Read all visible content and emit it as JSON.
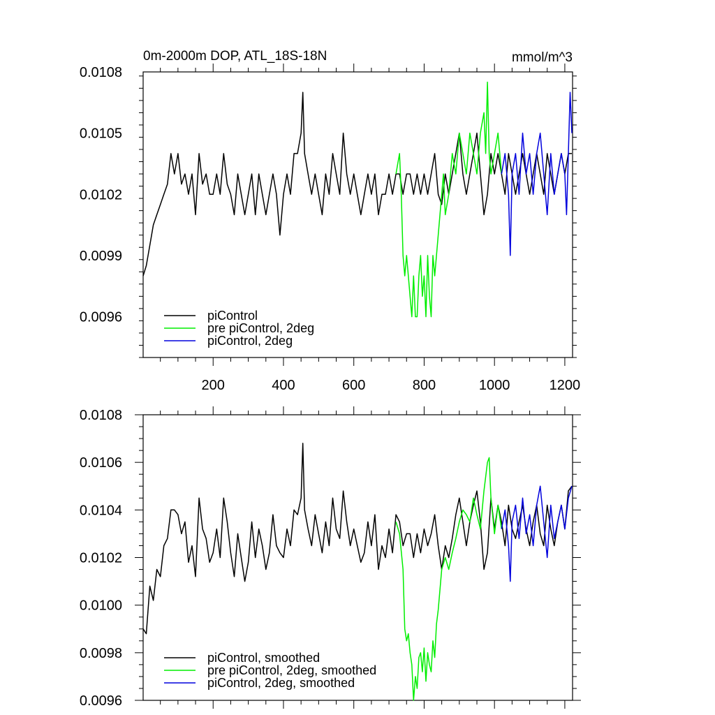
{
  "chart_data": [
    {
      "type": "line",
      "title": "0m-2000m DOP, ATL_18S-18N",
      "units": "mmol/m^3",
      "xlabel": "",
      "ylabel": "",
      "xlim": [
        1,
        1222
      ],
      "ylim": [
        0.0094,
        0.0108
      ],
      "x_ticks": [
        200,
        400,
        600,
        800,
        1000,
        1200
      ],
      "x_tick_labels": [
        "200",
        "400",
        "600",
        "800",
        "1000",
        "1200"
      ],
      "y_ticks": [
        0.0096,
        0.0099,
        0.0102,
        0.0105,
        0.0108
      ],
      "y_tick_labels": [
        "0.0096",
        "0.0099",
        "0.0102",
        "0.0105",
        "0.0108"
      ],
      "legend_position": "bottom-left",
      "series": [
        {
          "name": "piControl",
          "color": "#000000",
          "x": [
            1,
            10,
            20,
            30,
            40,
            50,
            60,
            70,
            80,
            90,
            100,
            110,
            120,
            130,
            140,
            150,
            160,
            170,
            180,
            190,
            200,
            210,
            220,
            230,
            240,
            250,
            260,
            270,
            280,
            290,
            300,
            310,
            320,
            330,
            340,
            350,
            360,
            370,
            380,
            390,
            400,
            410,
            420,
            430,
            440,
            450,
            455,
            460,
            470,
            480,
            490,
            500,
            510,
            520,
            530,
            540,
            550,
            560,
            570,
            580,
            590,
            600,
            610,
            620,
            630,
            640,
            650,
            660,
            670,
            680,
            690,
            700,
            710,
            720,
            730,
            740,
            750,
            760,
            770,
            780,
            790,
            800,
            810,
            820,
            830,
            840,
            850,
            860,
            870,
            880,
            890,
            900,
            910,
            920,
            930,
            940,
            950,
            960,
            970,
            980,
            990,
            1000,
            1010,
            1020,
            1030,
            1040,
            1050,
            1060,
            1070,
            1080,
            1090,
            1100,
            1110,
            1120,
            1130,
            1140,
            1150,
            1160,
            1170,
            1180,
            1190,
            1200,
            1210,
            1220
          ],
          "values": [
            0.0098,
            0.00985,
            0.00995,
            0.01005,
            0.0101,
            0.01015,
            0.0102,
            0.01025,
            0.0104,
            0.0103,
            0.0104,
            0.01025,
            0.0103,
            0.0102,
            0.0103,
            0.0101,
            0.0104,
            0.01025,
            0.0103,
            0.0102,
            0.0102,
            0.0103,
            0.0102,
            0.0104,
            0.01025,
            0.0102,
            0.0101,
            0.0103,
            0.0102,
            0.0101,
            0.0102,
            0.0103,
            0.0101,
            0.0103,
            0.0102,
            0.0101,
            0.0102,
            0.0103,
            0.0102,
            0.01,
            0.0102,
            0.0103,
            0.0102,
            0.0104,
            0.0104,
            0.0105,
            0.0107,
            0.0104,
            0.0103,
            0.0102,
            0.0103,
            0.0102,
            0.0101,
            0.0103,
            0.0102,
            0.0104,
            0.0103,
            0.0102,
            0.0105,
            0.0103,
            0.0102,
            0.0103,
            0.0102,
            0.0101,
            0.0102,
            0.0103,
            0.0102,
            0.0103,
            0.0101,
            0.0102,
            0.0102,
            0.0103,
            0.0102,
            0.0103,
            0.0103,
            0.0102,
            0.0103,
            0.0103,
            0.0102,
            0.0103,
            0.0102,
            0.0103,
            0.0102,
            0.0103,
            0.0104,
            0.0102,
            0.01015,
            0.0103,
            0.0102,
            0.0103,
            0.0104,
            0.0105,
            0.0103,
            0.0102,
            0.0103,
            0.0104,
            0.0105,
            0.0103,
            0.0101,
            0.0102,
            0.0104,
            0.0103,
            0.0104,
            0.0103,
            0.0102,
            0.0104,
            0.0103,
            0.0102,
            0.0103,
            0.0104,
            0.0103,
            0.0102,
            0.0103,
            0.0104,
            0.0103,
            0.0102,
            0.0104,
            0.0103,
            0.0102,
            0.0103,
            0.0104,
            0.0103,
            0.0104,
            0.0104
          ]
        },
        {
          "name": "pre piControl, 2deg",
          "color": "#00ee00",
          "x": [
            720,
            730,
            735,
            740,
            745,
            750,
            755,
            760,
            765,
            770,
            775,
            780,
            785,
            790,
            795,
            800,
            805,
            810,
            815,
            820,
            825,
            830,
            835,
            840,
            845,
            850,
            855,
            860,
            870,
            880,
            890,
            900,
            910,
            920,
            930,
            940,
            950,
            960,
            970,
            975,
            980,
            985,
            990,
            1000,
            1010,
            1020
          ],
          "values": [
            0.0103,
            0.0104,
            0.0102,
            0.0099,
            0.0098,
            0.0099,
            0.0098,
            0.0097,
            0.0096,
            0.0098,
            0.0096,
            0.0096,
            0.0098,
            0.0099,
            0.0097,
            0.0098,
            0.0096,
            0.0099,
            0.0097,
            0.0096,
            0.0099,
            0.0098,
            0.0099,
            0.01,
            0.0101,
            0.0102,
            0.0103,
            0.0101,
            0.0102,
            0.0104,
            0.0103,
            0.0105,
            0.0104,
            0.0103,
            0.0105,
            0.0104,
            0.0103,
            0.0105,
            0.0106,
            0.0104,
            0.01075,
            0.0104,
            0.0103,
            0.0104,
            0.0105,
            0.0103
          ]
        },
        {
          "name": "piControl, 2deg",
          "color": "#0000dd",
          "x": [
            1020,
            1030,
            1040,
            1045,
            1050,
            1060,
            1070,
            1080,
            1090,
            1100,
            1110,
            1120,
            1130,
            1140,
            1150,
            1160,
            1170,
            1180,
            1190,
            1200,
            1205,
            1210,
            1215,
            1220
          ],
          "values": [
            0.0103,
            0.0104,
            0.0102,
            0.0099,
            0.0103,
            0.0104,
            0.0102,
            0.0105,
            0.0103,
            0.0104,
            0.0102,
            0.0104,
            0.0105,
            0.0103,
            0.0101,
            0.0104,
            0.0102,
            0.0103,
            0.0104,
            0.0103,
            0.0101,
            0.0104,
            0.0107,
            0.0105
          ]
        }
      ],
      "legend": [
        "piControl",
        "pre piControl, 2deg",
        "piControl, 2deg"
      ]
    },
    {
      "type": "line",
      "title": "",
      "xlabel": "",
      "ylabel": "",
      "xlim": [
        1,
        1222
      ],
      "ylim": [
        0.0096,
        0.0108
      ],
      "x_ticks": [
        200,
        400,
        600,
        800,
        1000,
        1200
      ],
      "x_tick_labels": [],
      "y_ticks": [
        0.0096,
        0.0098,
        0.01,
        0.0102,
        0.0104,
        0.0106,
        0.0108
      ],
      "y_tick_labels": [
        "0.0096",
        "0.0098",
        "0.0100",
        "0.0102",
        "0.0104",
        "0.0106",
        "0.0108"
      ],
      "legend_position": "bottom-left",
      "series": [
        {
          "name": "piControl, smoothed",
          "color": "#000000",
          "x": [
            1,
            10,
            20,
            30,
            40,
            50,
            60,
            70,
            80,
            90,
            100,
            110,
            120,
            130,
            140,
            150,
            160,
            170,
            180,
            190,
            200,
            210,
            220,
            230,
            240,
            250,
            260,
            270,
            280,
            290,
            300,
            310,
            320,
            330,
            340,
            350,
            360,
            370,
            380,
            390,
            400,
            410,
            420,
            430,
            440,
            450,
            455,
            460,
            470,
            480,
            490,
            500,
            510,
            520,
            530,
            540,
            550,
            560,
            570,
            580,
            590,
            600,
            610,
            620,
            630,
            640,
            650,
            660,
            670,
            680,
            690,
            700,
            710,
            720,
            730,
            740,
            750,
            760,
            770,
            780,
            790,
            800,
            810,
            820,
            830,
            840,
            850,
            860,
            870,
            880,
            890,
            900,
            910,
            920,
            930,
            940,
            950,
            960,
            970,
            980,
            990,
            1000,
            1010,
            1020,
            1030,
            1040,
            1050,
            1060,
            1070,
            1080,
            1090,
            1100,
            1110,
            1120,
            1130,
            1140,
            1150,
            1160,
            1170,
            1180,
            1190,
            1200,
            1210,
            1220
          ],
          "values": [
            0.0099,
            0.00988,
            0.01008,
            0.01002,
            0.01015,
            0.01012,
            0.01025,
            0.01028,
            0.0104,
            0.0104,
            0.01038,
            0.0103,
            0.01035,
            0.01018,
            0.01025,
            0.01012,
            0.01045,
            0.01032,
            0.01028,
            0.01018,
            0.01022,
            0.01032,
            0.0102,
            0.01045,
            0.01035,
            0.01022,
            0.01012,
            0.0103,
            0.0102,
            0.0101,
            0.01018,
            0.01035,
            0.0102,
            0.01032,
            0.01025,
            0.01015,
            0.01022,
            0.01038,
            0.01025,
            0.01022,
            0.0102,
            0.01032,
            0.01025,
            0.0104,
            0.01038,
            0.01045,
            0.01068,
            0.0104,
            0.01032,
            0.01025,
            0.01038,
            0.0103,
            0.01022,
            0.01035,
            0.01025,
            0.01045,
            0.01032,
            0.01028,
            0.01048,
            0.01035,
            0.01025,
            0.01032,
            0.01025,
            0.01018,
            0.01022,
            0.01035,
            0.01025,
            0.01038,
            0.01015,
            0.01025,
            0.0102,
            0.01032,
            0.01022,
            0.01038,
            0.01035,
            0.01025,
            0.0103,
            0.0103,
            0.0102,
            0.0103,
            0.01022,
            0.01032,
            0.01025,
            0.0103,
            0.01038,
            0.01025,
            0.01015,
            0.01025,
            0.0102,
            0.01028,
            0.01038,
            0.01045,
            0.01035,
            0.01025,
            0.01035,
            0.01042,
            0.01048,
            0.01035,
            0.01015,
            0.01022,
            0.01045,
            0.01032,
            0.01042,
            0.01035,
            0.01025,
            0.01042,
            0.01032,
            0.01028,
            0.01035,
            0.01042,
            0.01032,
            0.01025,
            0.01035,
            0.01042,
            0.0103,
            0.01025,
            0.01042,
            0.01032,
            0.01025,
            0.01035,
            0.01042,
            0.01032,
            0.01048,
            0.0105
          ]
        },
        {
          "name": "pre piControl, 2deg, smoothed",
          "color": "#00ee00",
          "x": [
            720,
            730,
            740,
            745,
            750,
            755,
            760,
            765,
            770,
            775,
            780,
            785,
            790,
            795,
            800,
            805,
            810,
            815,
            820,
            825,
            830,
            835,
            840,
            850,
            860,
            870,
            880,
            890,
            900,
            910,
            920,
            930,
            940,
            950,
            960,
            970,
            980,
            985,
            990,
            1000,
            1010,
            1020
          ],
          "values": [
            0.01035,
            0.0103,
            0.01015,
            0.0099,
            0.00985,
            0.00988,
            0.0098,
            0.00975,
            0.0096,
            0.0097,
            0.00965,
            0.00978,
            0.0098,
            0.00972,
            0.00982,
            0.00968,
            0.0098,
            0.00975,
            0.00972,
            0.00985,
            0.00978,
            0.00992,
            0.00998,
            0.01015,
            0.0102,
            0.01015,
            0.01022,
            0.01028,
            0.01035,
            0.0104,
            0.01038,
            0.01035,
            0.01045,
            0.01038,
            0.01032,
            0.01048,
            0.0106,
            0.01062,
            0.01045,
            0.0103,
            0.01042,
            0.01032
          ]
        },
        {
          "name": "piControl, 2deg, smoothed",
          "color": "#0000dd",
          "x": [
            1020,
            1030,
            1040,
            1045,
            1050,
            1060,
            1070,
            1080,
            1090,
            1100,
            1110,
            1120,
            1130,
            1140,
            1150,
            1160,
            1170,
            1180,
            1190,
            1200,
            1210,
            1220
          ],
          "values": [
            0.01032,
            0.0104,
            0.01025,
            0.0101,
            0.01035,
            0.01042,
            0.01028,
            0.01045,
            0.0103,
            0.01038,
            0.01025,
            0.01042,
            0.0105,
            0.01035,
            0.0102,
            0.01042,
            0.01028,
            0.01035,
            0.01042,
            0.01032,
            0.01045,
            0.0105
          ]
        }
      ],
      "legend": [
        "piControl, smoothed",
        "pre piControl, 2deg, smoothed",
        "piControl, 2deg, smoothed"
      ]
    }
  ]
}
